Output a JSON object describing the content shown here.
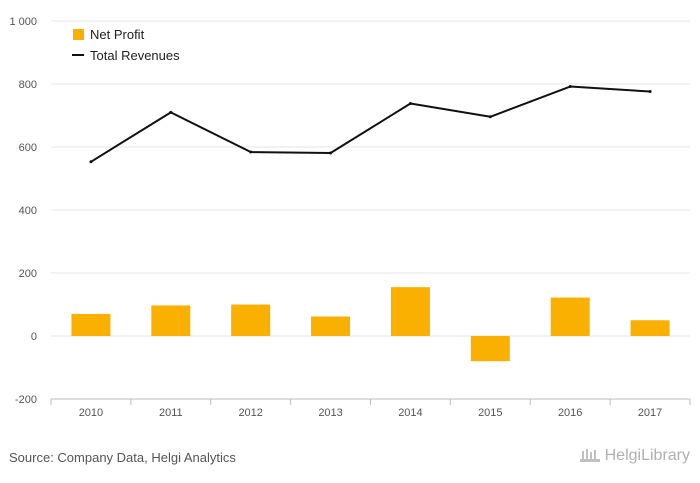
{
  "chart_data": {
    "type": "bar",
    "categories": [
      "2010",
      "2011",
      "2012",
      "2013",
      "2014",
      "2015",
      "2016",
      "2017"
    ],
    "series": [
      {
        "name": "Net Profit",
        "type": "bar",
        "color": "#F9B000",
        "values": [
          70,
          97,
          100,
          62,
          155,
          -80,
          122,
          50
        ]
      },
      {
        "name": "Total Revenues",
        "type": "line",
        "color": "#111111",
        "values": [
          553,
          710,
          584,
          581,
          738,
          696,
          792,
          776
        ]
      }
    ],
    "yticks": [
      -200,
      0,
      200,
      400,
      600,
      800,
      1000
    ],
    "ytick_labels": [
      "-200",
      "0",
      "200",
      "400",
      "600",
      "800",
      "1 000"
    ],
    "ylim": [
      -200,
      1000
    ],
    "grid": true,
    "legend_position": "top-left"
  },
  "footer": {
    "source": "Source: Company Data, Helgi Analytics",
    "brand": "HelgiLibrary"
  }
}
